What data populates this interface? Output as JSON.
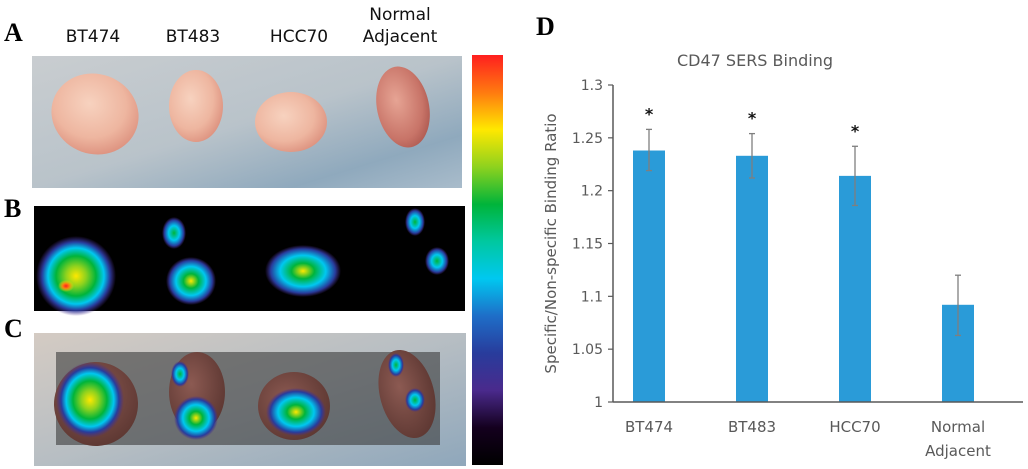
{
  "panels": {
    "a_letter": "A",
    "b_letter": "B",
    "c_letter": "C",
    "d_letter": "D"
  },
  "samples": [
    {
      "line1": "BT474",
      "line2": ""
    },
    {
      "line1": "BT483",
      "line2": ""
    },
    {
      "line1": "HCC70",
      "line2": ""
    },
    {
      "line1": "Normal",
      "line2": "Adjacent"
    }
  ],
  "colorbar": {
    "stops": [
      "#ff1f1f",
      "#ff7a10",
      "#ffe800",
      "#8ed21e",
      "#00b43a",
      "#00c8a0",
      "#00c8f0",
      "#1e6ec8",
      "#283c9c",
      "#4a2a8c",
      "#14001e",
      "#000000"
    ]
  },
  "colors": {
    "bar": "#2a9bd8",
    "axis": "#595959",
    "error_bar": "#7f7f7f",
    "title": "#595959"
  },
  "chart_data": {
    "type": "bar",
    "title": "CD47 SERS Binding",
    "xlabel": "",
    "ylabel": "Specific/Non-specific Binding Ratio",
    "categories": [
      "BT474",
      "BT483",
      "HCC70",
      "Normal Adjacent"
    ],
    "category_lines": [
      [
        "BT474"
      ],
      [
        "BT483"
      ],
      [
        "HCC70"
      ],
      [
        "Normal",
        "Adjacent"
      ]
    ],
    "values": [
      1.238,
      1.233,
      1.214,
      1.092
    ],
    "error_low": [
      1.219,
      1.212,
      1.186,
      1.063
    ],
    "error_high": [
      1.258,
      1.254,
      1.242,
      1.12
    ],
    "significance": [
      "*",
      "*",
      "*",
      ""
    ],
    "ylim": [
      1,
      1.3
    ],
    "yticks": [
      1,
      1.05,
      1.1,
      1.15,
      1.2,
      1.25,
      1.3
    ],
    "ytick_labels": [
      "1",
      "1.05",
      "1.1",
      "1.15",
      "1.2",
      "1.25",
      "1.3"
    ],
    "grid": false,
    "legend": "none"
  }
}
